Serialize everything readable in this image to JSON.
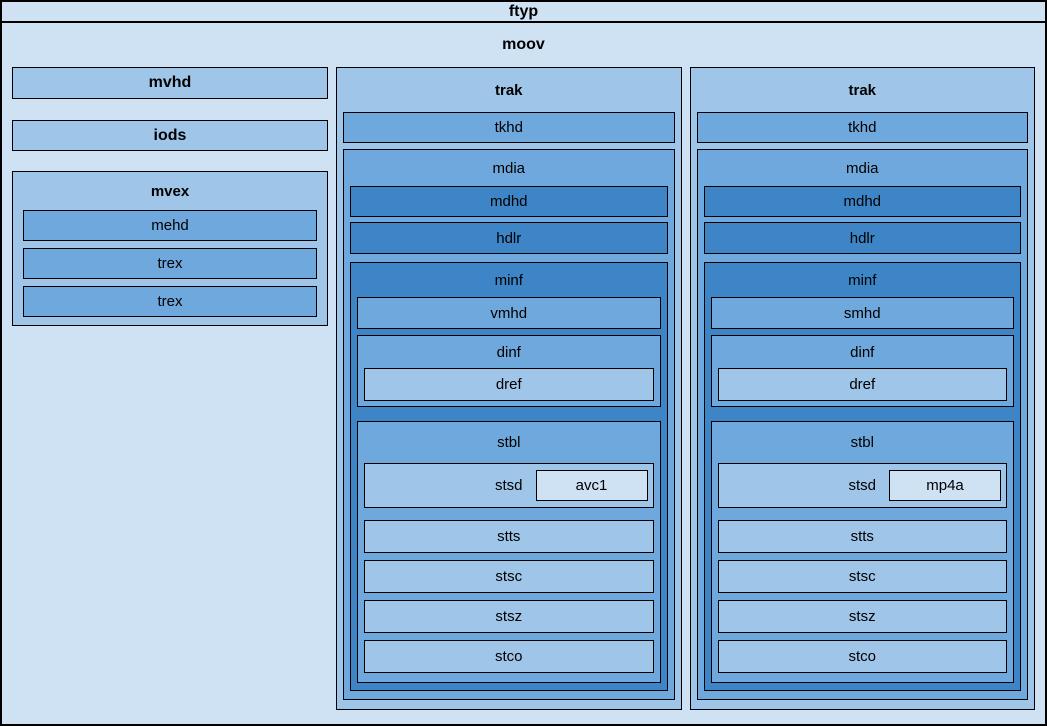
{
  "palette": {
    "c1": "#cfe2f3",
    "c2": "#9fc5e8",
    "c3": "#6fa8dc",
    "c4": "#3d85c6",
    "border": "#000000"
  },
  "ftyp": {
    "label": "ftyp"
  },
  "moov": {
    "label": "moov",
    "left": {
      "mvhd": "mvhd",
      "iods": "iods",
      "mvex": {
        "label": "mvex",
        "children": [
          "mehd",
          "trex",
          "trex"
        ]
      }
    },
    "traks": [
      {
        "label": "trak",
        "tkhd": "tkhd",
        "mdia": {
          "label": "mdia",
          "mdhd": "mdhd",
          "hdlr": "hdlr",
          "minf": {
            "label": "minf",
            "header": "vmhd",
            "dinf": {
              "label": "dinf",
              "dref": "dref"
            },
            "stbl": {
              "label": "stbl",
              "stsd": {
                "label": "stsd",
                "entry": "avc1"
              },
              "rows": [
                "stts",
                "stsc",
                "stsz",
                "stco"
              ]
            }
          }
        }
      },
      {
        "label": "trak",
        "tkhd": "tkhd",
        "mdia": {
          "label": "mdia",
          "mdhd": "mdhd",
          "hdlr": "hdlr",
          "minf": {
            "label": "minf",
            "header": "smhd",
            "dinf": {
              "label": "dinf",
              "dref": "dref"
            },
            "stbl": {
              "label": "stbl",
              "stsd": {
                "label": "stsd",
                "entry": "mp4a"
              },
              "rows": [
                "stts",
                "stsc",
                "stsz",
                "stco"
              ]
            }
          }
        }
      }
    ]
  }
}
